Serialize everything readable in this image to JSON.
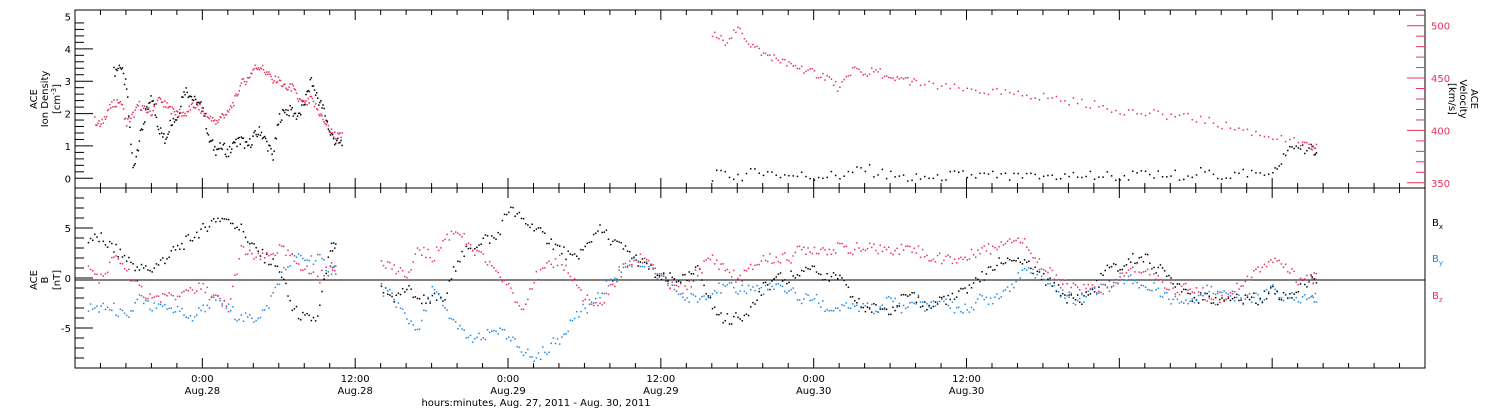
{
  "chart_data": [
    {
      "type": "scatter",
      "ylabel_lines": [
        "ACE",
        "Ion Density",
        "[cm",
        "-3",
        "]"
      ],
      "right_ylabel_lines": [
        "ACE",
        "Velocity",
        "[km/s]"
      ],
      "ylim": [
        -0.3,
        5.2
      ],
      "yticks": [
        "0",
        "1",
        "2",
        "3",
        "4",
        "5"
      ],
      "right_ylim": [
        345,
        515
      ],
      "right_yticks": [
        "350",
        "400",
        "450",
        "500"
      ],
      "series": [
        {
          "axis": "left",
          "color": "#000000",
          "x": [
            -7,
            -6.5,
            -6,
            -5.5,
            -5,
            -4.5,
            -4,
            -3.5,
            -3,
            -2.5,
            -2,
            -1.5,
            -1,
            -0.5,
            0,
            0.5,
            1,
            1.5,
            2,
            2.5,
            3,
            3.5,
            4,
            4.5,
            5,
            5.5,
            6,
            6.5,
            7,
            7.5,
            8,
            8.5,
            9,
            9.5,
            10,
            10.5,
            40,
            42,
            44,
            46,
            48,
            50,
            52,
            54,
            56,
            58,
            60,
            62,
            64,
            66,
            68,
            70,
            72,
            74,
            76,
            78,
            80,
            82,
            84,
            85,
            86,
            87
          ],
          "values": [
            3.3,
            3.5,
            2.8,
            0.3,
            1.2,
            2.0,
            2.5,
            1.6,
            1.2,
            1.8,
            1.9,
            2.8,
            2.6,
            2.3,
            2.2,
            1.2,
            0.9,
            1.0,
            0.8,
            1.1,
            1.2,
            1.0,
            1.3,
            1.5,
            1.1,
            0.7,
            1.9,
            2.1,
            2.1,
            1.9,
            2.4,
            3.0,
            2.5,
            2.1,
            1.4,
            1.1,
            0.1,
            0.1,
            0.2,
            0.1,
            0.1,
            0.1,
            0.3,
            0.1,
            0.0,
            0.1,
            0.1,
            0.1,
            0.0,
            0.1,
            0.1,
            0.1,
            0.1,
            0.1,
            0.1,
            0.2,
            0.1,
            0.2,
            0.1,
            0.8,
            1.0,
            0.9
          ]
        },
        {
          "axis": "right",
          "color": "#e8305a",
          "x": [
            -8.5,
            -8,
            -7.5,
            -7,
            -6.5,
            -6,
            -5.5,
            -5,
            -4.5,
            -4,
            -3.5,
            -3,
            -2.5,
            -2,
            -1.5,
            -1,
            -0.5,
            0,
            0.5,
            1,
            1.5,
            2,
            2.5,
            3,
            3.5,
            4,
            4.5,
            5,
            5.5,
            6,
            6.5,
            7,
            7.5,
            8,
            8.5,
            9,
            9.5,
            10,
            10.5,
            40,
            41,
            42,
            43,
            44,
            45,
            46,
            47,
            48,
            49,
            50,
            51,
            52,
            53,
            54,
            55,
            56,
            58,
            60,
            62,
            64,
            66,
            68,
            70,
            72,
            74,
            76,
            78,
            80,
            82,
            84,
            86,
            87
          ],
          "values": [
            410,
            405,
            420,
            426,
            430,
            408,
            415,
            425,
            420,
            418,
            430,
            425,
            420,
            418,
            415,
            422,
            425,
            418,
            412,
            408,
            415,
            418,
            430,
            445,
            450,
            460,
            462,
            455,
            450,
            448,
            440,
            442,
            430,
            425,
            430,
            420,
            410,
            400,
            395,
            492,
            486,
            498,
            483,
            474,
            470,
            463,
            460,
            455,
            452,
            440,
            460,
            455,
            458,
            448,
            450,
            446,
            442,
            440,
            437,
            435,
            433,
            429,
            425,
            420,
            417,
            415,
            412,
            406,
            400,
            394,
            389,
            384
          ]
        }
      ]
    },
    {
      "type": "scatter",
      "ylabel_lines": [
        "ACE",
        "B",
        "[nT]"
      ],
      "ylim": [
        -9,
        9
      ],
      "yticks": [
        "-5",
        "0",
        "5"
      ],
      "legend_position": "right",
      "series": [
        {
          "name": "B",
          "sub": "x",
          "color": "#000000",
          "x": [
            -9,
            -8,
            -7,
            -6,
            -5,
            -4,
            -3,
            -2,
            -1,
            0,
            1,
            2,
            3,
            4,
            5,
            6,
            7,
            8,
            9,
            10,
            14,
            15,
            16,
            17,
            18,
            19,
            20,
            21,
            22,
            23,
            24,
            25,
            26,
            27,
            28,
            29,
            30,
            31,
            32,
            33,
            34,
            35,
            36,
            37,
            38,
            39,
            40,
            41,
            42,
            43,
            44,
            45,
            46,
            47,
            48,
            49,
            50,
            51,
            52,
            53,
            54,
            55,
            56,
            57,
            58,
            59,
            60,
            61,
            62,
            63,
            64,
            65,
            66,
            67,
            68,
            69,
            70,
            71,
            72,
            73,
            74,
            75,
            76,
            77,
            78,
            79,
            80,
            81,
            82,
            83,
            84,
            85,
            86,
            87
          ],
          "values": [
            4,
            4,
            3,
            2,
            1,
            1,
            2,
            3,
            4,
            5,
            6,
            6,
            5,
            3,
            2,
            1,
            -3,
            -4,
            -4,
            3,
            -1,
            -2,
            -1,
            -2,
            -2,
            -2,
            2,
            3,
            4,
            4,
            7,
            6,
            5,
            4,
            3,
            2,
            3,
            5,
            4,
            3,
            2,
            1,
            0,
            0,
            0,
            1,
            -3,
            -4,
            -4,
            -3,
            -1,
            0,
            0,
            1,
            1,
            0,
            0,
            -2,
            -3,
            -3,
            -3,
            -2,
            -2,
            -3,
            -2,
            -2,
            -1,
            0,
            1,
            2,
            2,
            1,
            0,
            -1,
            -2,
            -2,
            -1,
            1,
            1,
            2,
            2,
            1,
            0,
            -1,
            -2,
            -2,
            -2,
            -2,
            -2,
            -2,
            -1,
            -2,
            -1,
            0
          ]
        },
        {
          "name": "B",
          "sub": "y",
          "color": "#1f88e0",
          "x": [
            -9,
            -8,
            -7,
            -6,
            -5,
            -4,
            -3,
            -2,
            -1,
            0,
            1,
            2,
            3,
            4,
            5,
            6,
            7,
            8,
            9,
            10,
            14,
            15,
            16,
            17,
            18,
            19,
            20,
            21,
            22,
            23,
            24,
            25,
            26,
            27,
            28,
            29,
            30,
            31,
            32,
            33,
            34,
            35,
            36,
            37,
            38,
            39,
            40,
            41,
            42,
            43,
            44,
            45,
            46,
            47,
            48,
            49,
            50,
            51,
            52,
            53,
            54,
            55,
            56,
            57,
            58,
            59,
            60,
            61,
            62,
            63,
            64,
            65,
            66,
            67,
            68,
            69,
            70,
            71,
            72,
            73,
            74,
            75,
            76,
            77,
            78,
            79,
            80,
            81,
            82,
            83,
            84,
            85,
            86,
            87
          ],
          "values": [
            -3,
            -3,
            -3,
            -4,
            -2,
            -3,
            -3,
            -3,
            -4,
            -3,
            -2,
            -3,
            -4,
            -4,
            -3,
            0,
            2,
            2,
            2,
            1,
            -1,
            -2,
            -4,
            -5,
            -1,
            -3,
            -5,
            -6,
            -6,
            -5,
            -6,
            -7,
            -8,
            -7,
            -6,
            -4,
            -3,
            -2,
            0,
            1,
            2,
            1,
            0,
            -1,
            -2,
            -2,
            -1,
            -1,
            -1,
            -1,
            -1,
            -1,
            -1,
            -2,
            -2,
            -3,
            -3,
            -3,
            -3,
            -3,
            -2,
            -3,
            -2,
            -3,
            -2,
            -3,
            -3,
            -2,
            -2,
            -1,
            0,
            1,
            0,
            -1,
            -2,
            -2,
            -1,
            -1,
            0,
            0,
            -1,
            -1,
            -2,
            -2,
            -2,
            -1,
            -1,
            -2,
            -2,
            -2,
            -1,
            -2,
            -2,
            -2
          ]
        },
        {
          "name": "B",
          "sub": "z",
          "color": "#e8305a",
          "x": [
            -9,
            -8,
            -7,
            -6,
            -5,
            -4,
            -3,
            -2,
            -1,
            0,
            1,
            2,
            3,
            4,
            5,
            6,
            7,
            8,
            9,
            10,
            14,
            15,
            16,
            17,
            18,
            19,
            20,
            21,
            22,
            23,
            24,
            25,
            26,
            27,
            28,
            29,
            30,
            31,
            32,
            33,
            34,
            35,
            36,
            37,
            38,
            39,
            40,
            41,
            42,
            43,
            44,
            45,
            46,
            47,
            48,
            49,
            50,
            51,
            52,
            53,
            54,
            55,
            56,
            57,
            58,
            59,
            60,
            61,
            62,
            63,
            64,
            65,
            66,
            67,
            68,
            69,
            70,
            71,
            72,
            73,
            74,
            75,
            76,
            77,
            78,
            79,
            80,
            81,
            82,
            83,
            84,
            85,
            86,
            87
          ],
          "values": [
            1,
            0,
            2,
            1,
            -1,
            -2,
            -2,
            -2,
            -1,
            -1,
            -2,
            -3,
            3,
            2,
            2,
            3,
            2,
            1,
            0,
            1,
            2,
            1,
            0,
            3,
            2,
            4,
            5,
            3,
            2,
            1,
            -1,
            -3,
            0,
            1,
            2,
            0,
            -2,
            -3,
            -1,
            1,
            2,
            2,
            0,
            -1,
            -1,
            1,
            2,
            1,
            0,
            1,
            2,
            2,
            2,
            3,
            3,
            3,
            3,
            3,
            3,
            3,
            3,
            3,
            3,
            2,
            2,
            2,
            2,
            3,
            3,
            4,
            4,
            3,
            1,
            0,
            -1,
            -1,
            -1,
            -1,
            0,
            1,
            1,
            0,
            -1,
            -1,
            -1,
            -2,
            -2,
            -1,
            0,
            1,
            2,
            1,
            0,
            0
          ]
        }
      ]
    }
  ],
  "xaxis": {
    "xlim": [
      -10,
      96
    ],
    "ticks": [
      {
        "x": 0,
        "time": "0:00",
        "day": "Aug.28"
      },
      {
        "x": 12,
        "time": "12:00",
        "day": "Aug.28"
      },
      {
        "x": 24,
        "time": "0:00",
        "day": "Aug.29"
      },
      {
        "x": 36,
        "time": "12:00",
        "day": "Aug.29"
      },
      {
        "x": 48,
        "time": "0:00",
        "day": "Aug.30"
      },
      {
        "x": 60,
        "time": "12:00",
        "day": "Aug.30"
      }
    ],
    "label": "hours:minutes, Aug. 27, 2011 - Aug. 30, 2011"
  },
  "colors": {
    "black": "#000000",
    "blue": "#1f88e0",
    "red": "#e8305a"
  }
}
